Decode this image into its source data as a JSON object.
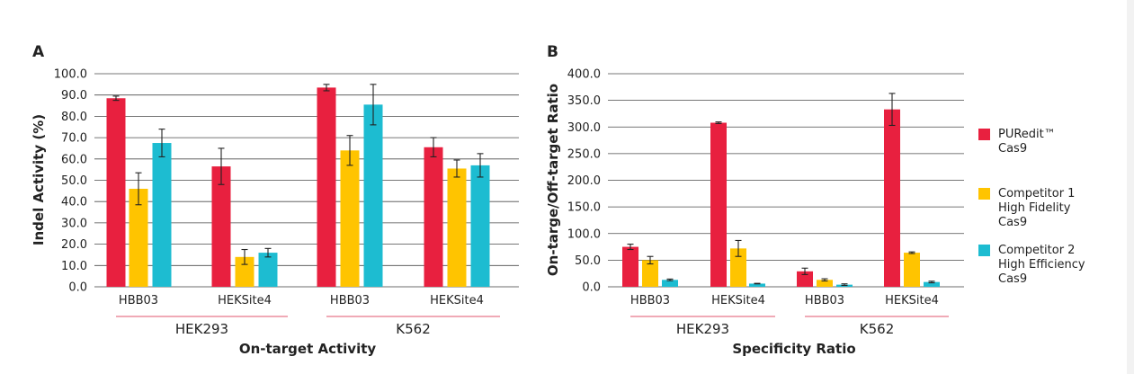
{
  "series": [
    {
      "name_lines": [
        "PURedit™",
        "Cas9"
      ],
      "color": "#E8203F"
    },
    {
      "name_lines": [
        "Competitor 1",
        "High Fidelity",
        "Cas9"
      ],
      "color": "#FFC400"
    },
    {
      "name_lines": [
        "Competitor 2",
        "High Efficiency",
        "Cas9"
      ],
      "color": "#1DBCD1"
    }
  ],
  "chart_data": [
    {
      "type": "bar",
      "panel_label": "A",
      "title": "",
      "xlabel": "On-target Activity",
      "ylabel": "Indel Activity (%)",
      "ylim": [
        0,
        100
      ],
      "yticks": [
        "0.0",
        "10.0",
        "20.0",
        "30.0",
        "40.0",
        "50.0",
        "60.0",
        "70.0",
        "80.0",
        "90.0",
        "100.0"
      ],
      "grid": true,
      "legend": "none",
      "groups": [
        "HEK293",
        "K562"
      ],
      "categories": [
        "HBB03",
        "HEKSite4",
        "HBB03",
        "HEKSite4"
      ],
      "series": [
        {
          "values": [
            88.5,
            56.5,
            93.5,
            65.5
          ],
          "errors": [
            1.0,
            8.5,
            1.5,
            4.5
          ]
        },
        {
          "values": [
            46,
            14,
            64,
            55.5
          ],
          "errors": [
            7.5,
            3.5,
            7.0,
            4.0
          ]
        },
        {
          "values": [
            67.5,
            16,
            85.5,
            57
          ],
          "errors": [
            6.5,
            2.0,
            9.5,
            5.5
          ]
        }
      ]
    },
    {
      "type": "bar",
      "panel_label": "B",
      "title": "",
      "xlabel": "Specificity Ratio",
      "ylabel": "On-targe/Off-target Ratio",
      "ylim": [
        0,
        400
      ],
      "yticks": [
        "0.0",
        "50.0",
        "100.0",
        "150.0",
        "200.0",
        "250.0",
        "300.0",
        "350.0",
        "400.0"
      ],
      "grid": true,
      "legend": "right",
      "groups": [
        "HEK293",
        "K562"
      ],
      "categories": [
        "HBB03",
        "HEKSite4",
        "HBB03",
        "HEKSite4"
      ],
      "series": [
        {
          "values": [
            75,
            308,
            29,
            333
          ],
          "errors": [
            5,
            1.5,
            6,
            30
          ]
        },
        {
          "values": [
            50,
            72,
            13,
            64
          ],
          "errors": [
            7,
            15,
            2,
            1.5
          ]
        },
        {
          "values": [
            13,
            6,
            4,
            9
          ],
          "errors": [
            1.5,
            0.5,
            1.5,
            1.5
          ]
        }
      ]
    }
  ]
}
